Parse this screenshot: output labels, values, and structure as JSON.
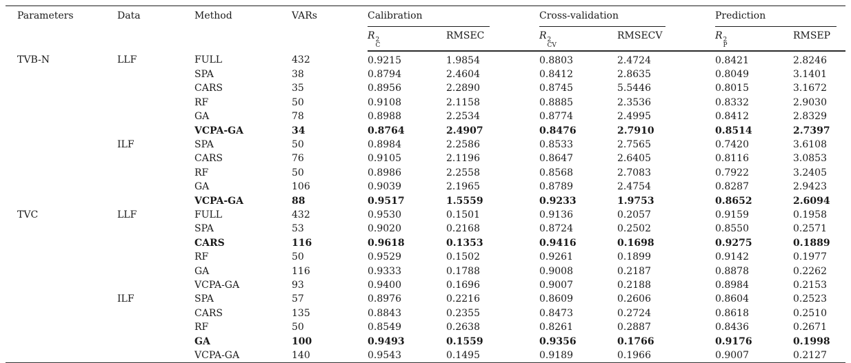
{
  "table": {
    "header": {
      "parameters": "Parameters",
      "data": "Data",
      "method": "Method",
      "vars": "VARs",
      "groups": [
        {
          "label": "Calibration",
          "metric_base": "R",
          "metric_sup": "2",
          "metric_sub": "C",
          "rmse": "RMSEC"
        },
        {
          "label": "Cross-validation",
          "metric_base": "R",
          "metric_sup": "2",
          "metric_sub": "CV",
          "rmse": "RMSECV"
        },
        {
          "label": "Prediction",
          "metric_base": "R",
          "metric_sup": "2",
          "metric_sub": "P",
          "rmse": "RMSEP"
        }
      ]
    },
    "rows": [
      {
        "parameter": "TVB-N",
        "data": "LLF",
        "method": "FULL",
        "vars": "432",
        "values": [
          "0.9215",
          "1.9854",
          "0.8803",
          "2.4724",
          "0.8421",
          "2.8246"
        ],
        "bold": false
      },
      {
        "parameter": "",
        "data": "",
        "method": "SPA",
        "vars": "38",
        "values": [
          "0.8794",
          "2.4604",
          "0.8412",
          "2.8635",
          "0.8049",
          "3.1401"
        ],
        "bold": false
      },
      {
        "parameter": "",
        "data": "",
        "method": "CARS",
        "vars": "35",
        "values": [
          "0.8956",
          "2.2890",
          "0.8745",
          "5.5446",
          "0.8015",
          "3.1672"
        ],
        "bold": false
      },
      {
        "parameter": "",
        "data": "",
        "method": "RF",
        "vars": "50",
        "values": [
          "0.9108",
          "2.1158",
          "0.8885",
          "2.3536",
          "0.8332",
          "2.9030"
        ],
        "bold": false
      },
      {
        "parameter": "",
        "data": "",
        "method": "GA",
        "vars": "78",
        "values": [
          "0.8988",
          "2.2534",
          "0.8774",
          "2.4995",
          "0.8412",
          "2.8329"
        ],
        "bold": false
      },
      {
        "parameter": "",
        "data": "",
        "method": "VCPA-GA",
        "vars": "34",
        "values": [
          "0.8764",
          "2.4907",
          "0.8476",
          "2.7910",
          "0.8514",
          "2.7397"
        ],
        "bold": true
      },
      {
        "parameter": "",
        "data": "ILF",
        "method": "SPA",
        "vars": "50",
        "values": [
          "0.8984",
          "2.2586",
          "0.8533",
          "2.7565",
          "0.7420",
          "3.6108"
        ],
        "bold": false
      },
      {
        "parameter": "",
        "data": "",
        "method": "CARS",
        "vars": "76",
        "values": [
          "0.9105",
          "2.1196",
          "0.8647",
          "2.6405",
          "0.8116",
          "3.0853"
        ],
        "bold": false
      },
      {
        "parameter": "",
        "data": "",
        "method": "RF",
        "vars": "50",
        "values": [
          "0.8986",
          "2.2558",
          "0.8568",
          "2.7083",
          "0.7922",
          "3.2405"
        ],
        "bold": false
      },
      {
        "parameter": "",
        "data": "",
        "method": "GA",
        "vars": "106",
        "values": [
          "0.9039",
          "2.1965",
          "0.8789",
          "2.4754",
          "0.8287",
          "2.9423"
        ],
        "bold": false
      },
      {
        "parameter": "",
        "data": "",
        "method": "VCPA-GA",
        "vars": "88",
        "values": [
          "0.9517",
          "1.5559",
          "0.9233",
          "1.9753",
          "0.8652",
          "2.6094"
        ],
        "bold": true
      },
      {
        "parameter": "TVC",
        "data": "LLF",
        "method": "FULL",
        "vars": "432",
        "values": [
          "0.9530",
          "0.1501",
          "0.9136",
          "0.2057",
          "0.9159",
          "0.1958"
        ],
        "bold": false
      },
      {
        "parameter": "",
        "data": "",
        "method": "SPA",
        "vars": "53",
        "values": [
          "0.9020",
          "0.2168",
          "0.8724",
          "0.2502",
          "0.8550",
          "0.2571"
        ],
        "bold": false
      },
      {
        "parameter": "",
        "data": "",
        "method": "CARS",
        "vars": "116",
        "values": [
          "0.9618",
          "0.1353",
          "0.9416",
          "0.1698",
          "0.9275",
          "0.1889"
        ],
        "bold": true
      },
      {
        "parameter": "",
        "data": "",
        "method": "RF",
        "vars": "50",
        "values": [
          "0.9529",
          "0.1502",
          "0.9261",
          "0.1899",
          "0.9142",
          "0.1977"
        ],
        "bold": false
      },
      {
        "parameter": "",
        "data": "",
        "method": "GA",
        "vars": "116",
        "values": [
          "0.9333",
          "0.1788",
          "0.9008",
          "0.2187",
          "0.8878",
          "0.2262"
        ],
        "bold": false
      },
      {
        "parameter": "",
        "data": "",
        "method": "VCPA-GA",
        "vars": "93",
        "values": [
          "0.9400",
          "0.1696",
          "0.9007",
          "0.2188",
          "0.8984",
          "0.2153"
        ],
        "bold": false
      },
      {
        "parameter": "",
        "data": "ILF",
        "method": "SPA",
        "vars": "57",
        "values": [
          "0.8976",
          "0.2216",
          "0.8609",
          "0.2606",
          "0.8604",
          "0.2523"
        ],
        "bold": false
      },
      {
        "parameter": "",
        "data": "",
        "method": "CARS",
        "vars": "135",
        "values": [
          "0.8843",
          "0.2355",
          "0.8473",
          "0.2724",
          "0.8618",
          "0.2510"
        ],
        "bold": false
      },
      {
        "parameter": "",
        "data": "",
        "method": "RF",
        "vars": "50",
        "values": [
          "0.8549",
          "0.2638",
          "0.8261",
          "0.2887",
          "0.8436",
          "0.2671"
        ],
        "bold": false
      },
      {
        "parameter": "",
        "data": "",
        "method": "GA",
        "vars": "100",
        "values": [
          "0.9493",
          "0.1559",
          "0.9356",
          "0.1766",
          "0.9176",
          "0.1998"
        ],
        "bold": true
      },
      {
        "parameter": "",
        "data": "",
        "method": "VCPA-GA",
        "vars": "140",
        "values": [
          "0.9543",
          "0.1495",
          "0.9189",
          "0.1966",
          "0.9007",
          "0.2127"
        ],
        "bold": false
      }
    ]
  },
  "colors": {
    "text": "#1a1a1a",
    "rule_thin": "#1c1c1c",
    "rule_thick": "#2a2a2a",
    "background": "#ffffff"
  }
}
